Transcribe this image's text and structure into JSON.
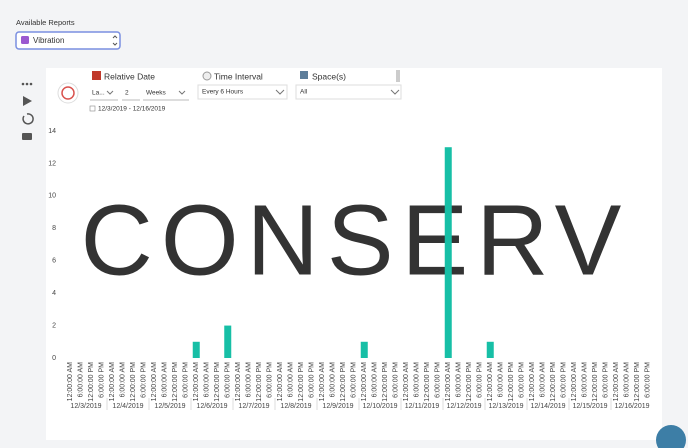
{
  "header": {
    "label": "Available Reports",
    "report_select": "Vibration"
  },
  "filters": {
    "relative_date": {
      "title": "Relative Date",
      "mode": "La...",
      "count": "2",
      "unit": "Weeks",
      "range": "12/3/2019 - 12/16/2019"
    },
    "time_interval": {
      "title": "Time Interval",
      "value": "Every 6 Hours"
    },
    "spaces": {
      "title": "Space(s)",
      "value": "All"
    }
  },
  "watermark": "CONSERV",
  "chart_data": {
    "type": "bar",
    "color": "#17bfa6",
    "groups": [
      "12/3/2019",
      "12/4/2019",
      "12/5/2019",
      "12/6/2019",
      "12/7/2019",
      "12/8/2019",
      "12/9/2019",
      "12/10/2019",
      "12/11/2019",
      "12/12/2019",
      "12/13/2019",
      "12/14/2019",
      "12/15/2019",
      "12/16/2019"
    ],
    "categories": [
      "12:00:00 AM",
      "6:00:00 AM",
      "12:00:00 PM",
      "6:00:00 PM",
      "12:00:00 AM",
      "6:00:00 AM",
      "12:00:00 PM",
      "6:00:00 PM",
      "12:00:00 AM",
      "6:00:00 AM",
      "12:00:00 PM",
      "6:00:00 PM",
      "12:00:00 AM",
      "6:00:00 AM",
      "12:00:00 PM",
      "6:00:00 PM",
      "12:00:00 AM",
      "6:00:00 AM",
      "12:00:00 PM",
      "6:00:00 PM",
      "12:00:00 AM",
      "6:00:00 AM",
      "12:00:00 PM",
      "6:00:00 PM",
      "12:00:00 AM",
      "6:00:00 AM",
      "12:00:00 PM",
      "6:00:00 PM",
      "12:00:00 AM",
      "6:00:00 AM",
      "12:00:00 PM",
      "6:00:00 PM",
      "12:00:00 AM",
      "6:00:00 AM",
      "12:00:00 PM",
      "6:00:00 PM",
      "12:00:00 AM",
      "6:00:00 AM",
      "12:00:00 PM",
      "6:00:00 PM",
      "12:00:00 AM",
      "6:00:00 AM",
      "12:00:00 PM",
      "6:00:00 PM",
      "12:00:00 AM",
      "6:00:00 AM",
      "12:00:00 PM",
      "6:00:00 PM",
      "12:00:00 AM",
      "6:00:00 AM",
      "12:00:00 PM",
      "6:00:00 PM",
      "12:00:00 AM",
      "6:00:00 AM",
      "12:00:00 PM",
      "6:00:00 PM"
    ],
    "values": [
      0,
      0,
      0,
      0,
      0,
      0,
      0,
      0,
      0,
      0,
      0,
      0,
      1,
      0,
      0,
      2,
      0,
      0,
      0,
      0,
      0,
      0,
      0,
      0,
      0,
      0,
      0,
      0,
      1,
      0,
      0,
      0,
      0,
      0,
      0,
      0,
      13,
      0,
      0,
      0,
      1,
      0,
      0,
      0,
      0,
      0,
      0,
      0,
      0,
      0,
      0,
      0,
      0,
      0,
      0,
      0
    ],
    "ylim": [
      0,
      14
    ],
    "yticks": [
      0,
      2,
      4,
      6,
      8,
      10,
      12,
      14
    ]
  }
}
